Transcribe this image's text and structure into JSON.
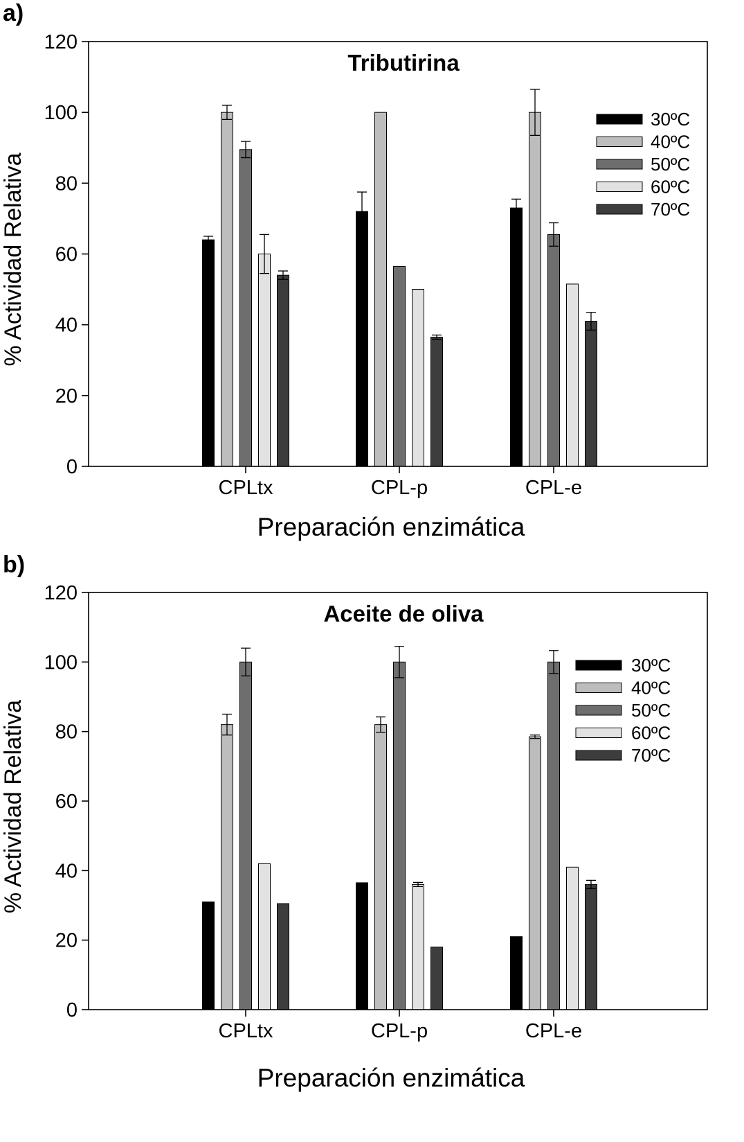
{
  "chart_data": [
    {
      "panel_label": "a)",
      "type": "bar",
      "title": "Tributirina",
      "xlabel": "Preparación enzimática",
      "ylabel": "% Actividad Relativa",
      "ylim": [
        0,
        120
      ],
      "yticks": [
        "0",
        "20",
        "40",
        "60",
        "80",
        "100",
        "120"
      ],
      "categories": [
        "CPLtx",
        "CPL-p",
        "CPL-e"
      ],
      "legend_position": "top-right",
      "series": [
        {
          "name": "30ºC",
          "color": "#000000",
          "values": [
            64,
            72,
            73
          ],
          "errors": [
            1,
            5.5,
            2.5
          ]
        },
        {
          "name": "40ºC",
          "color": "#bdbdbd",
          "values": [
            100,
            100,
            100
          ],
          "errors": [
            2,
            0,
            6.5
          ]
        },
        {
          "name": "50ºC",
          "color": "#6e6e6e",
          "values": [
            89.5,
            56.5,
            65.5
          ],
          "errors": [
            2.3,
            0,
            3.3
          ]
        },
        {
          "name": "60ºC",
          "color": "#e2e2e2",
          "values": [
            60,
            50,
            51.5
          ],
          "errors": [
            5.5,
            0,
            0
          ]
        },
        {
          "name": "70ºC",
          "color": "#3d3d3d",
          "values": [
            54,
            36.5,
            41
          ],
          "errors": [
            1.2,
            0.6,
            2.5
          ]
        }
      ]
    },
    {
      "panel_label": "b)",
      "type": "bar",
      "title": "Aceite de oliva",
      "xlabel": "Preparación enzimática",
      "ylabel": "% Actividad Relativa",
      "ylim": [
        0,
        120
      ],
      "yticks": [
        "0",
        "20",
        "40",
        "60",
        "80",
        "100",
        "120"
      ],
      "categories": [
        "CPLtx",
        "CPL-p",
        "CPL-e"
      ],
      "legend_position": "top-right",
      "series": [
        {
          "name": "30ºC",
          "color": "#000000",
          "values": [
            31,
            36.5,
            21
          ],
          "errors": [
            0,
            0,
            0
          ]
        },
        {
          "name": "40ºC",
          "color": "#bdbdbd",
          "values": [
            82,
            82,
            78.5
          ],
          "errors": [
            3,
            2.2,
            0.5
          ]
        },
        {
          "name": "50ºC",
          "color": "#6e6e6e",
          "values": [
            100,
            100,
            100
          ],
          "errors": [
            4,
            4.5,
            3.3
          ]
        },
        {
          "name": "60ºC",
          "color": "#e2e2e2",
          "values": [
            42,
            36,
            41
          ],
          "errors": [
            0,
            0.6,
            0
          ]
        },
        {
          "name": "70ºC",
          "color": "#3d3d3d",
          "values": [
            30.5,
            18,
            36
          ],
          "errors": [
            0,
            0,
            1.2
          ]
        }
      ]
    }
  ]
}
